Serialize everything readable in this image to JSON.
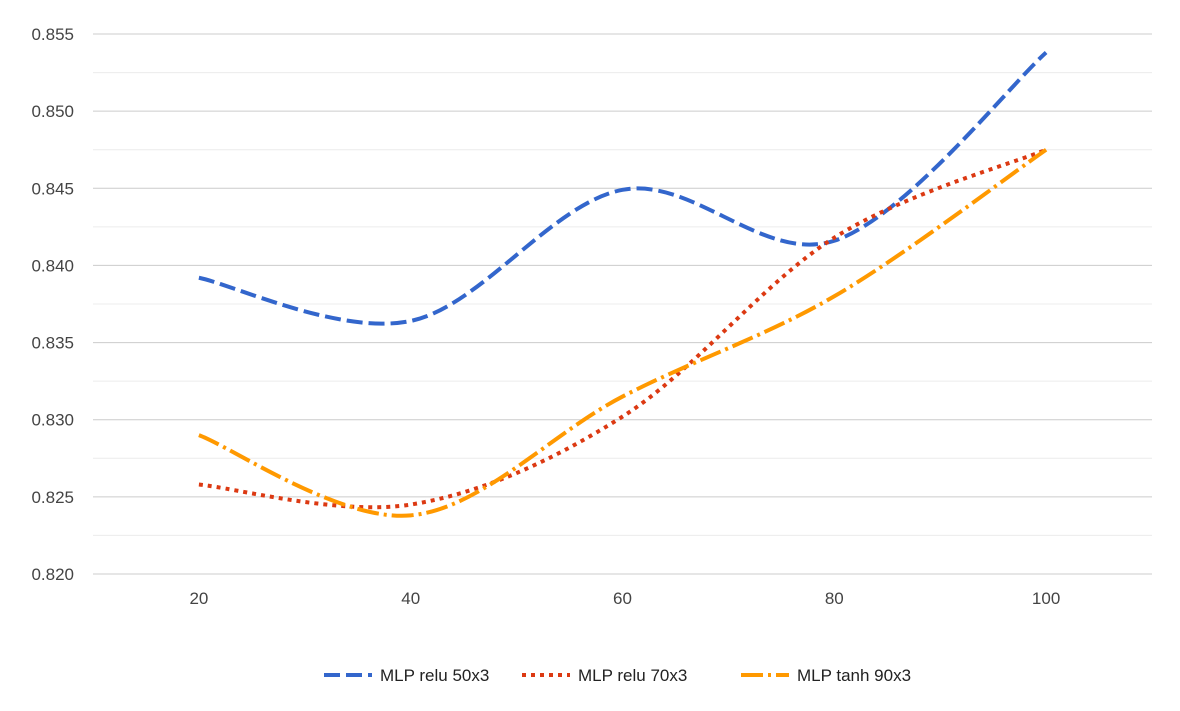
{
  "chart_data": {
    "type": "line",
    "title": "",
    "xlabel": "",
    "ylabel": "",
    "x": [
      20,
      40,
      60,
      80,
      100
    ],
    "xlim": [
      10,
      110
    ],
    "xticks": [
      "20",
      "40",
      "60",
      "80",
      "100"
    ],
    "ylim": [
      0.82,
      0.855
    ],
    "yticks": [
      "0.820",
      "0.825",
      "0.830",
      "0.835",
      "0.840",
      "0.845",
      "0.850",
      "0.855"
    ],
    "grid": true,
    "legend_position": "bottom",
    "smooth": true,
    "series": [
      {
        "name": "MLP relu 50x3",
        "values": [
          0.8392,
          0.8364,
          0.8449,
          0.8416,
          0.8538
        ],
        "color": "#3366cc",
        "style": "dashed"
      },
      {
        "name": "MLP relu 70x3",
        "values": [
          0.8258,
          0.8245,
          0.8302,
          0.8418,
          0.8475
        ],
        "color": "#dc3912",
        "style": "dotted"
      },
      {
        "name": "MLP tanh 90x3",
        "values": [
          0.829,
          0.8238,
          0.8315,
          0.838,
          0.8475
        ],
        "color": "#ff9900",
        "style": "dashdot"
      }
    ]
  }
}
